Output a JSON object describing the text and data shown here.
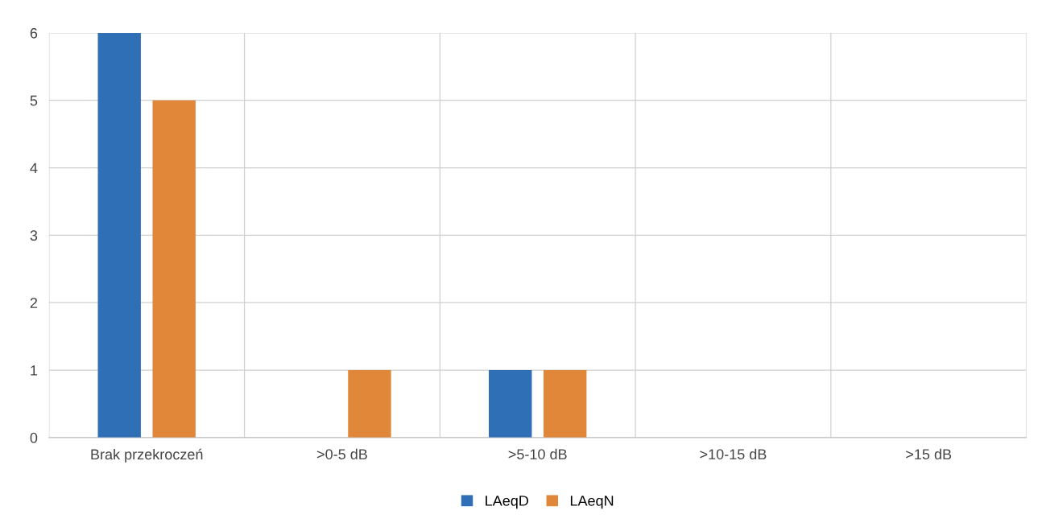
{
  "chart_data": {
    "type": "bar",
    "categories": [
      "Brak przekroczeń",
      ">0-5 dB",
      ">5-10 dB",
      ">10-15 dB",
      ">15 dB"
    ],
    "series": [
      {
        "name": "LAeqD",
        "color": "#2f6fb5",
        "values": [
          6,
          0,
          1,
          0,
          0
        ]
      },
      {
        "name": "LAeqN",
        "color": "#e0873a",
        "values": [
          5,
          1,
          1,
          0,
          0
        ]
      }
    ],
    "ylim": [
      0,
      6
    ],
    "yticks": [
      0,
      1,
      2,
      3,
      4,
      5,
      6
    ],
    "grid": true,
    "legend": "bottom"
  }
}
